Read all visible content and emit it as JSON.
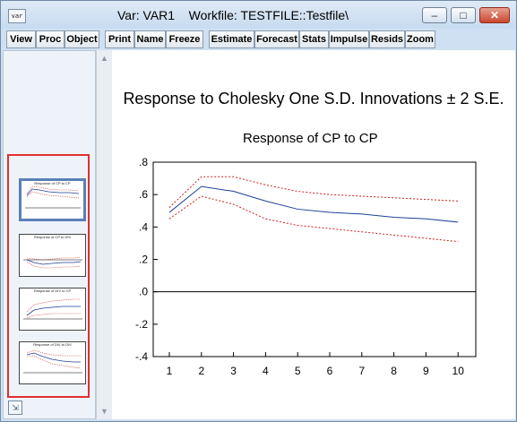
{
  "window": {
    "icon_label": "var",
    "title": "Var: VAR1    Workfile: TESTFILE::Testfile\\",
    "controls": {
      "minimize": "–",
      "maximize": "□",
      "close": "✕"
    }
  },
  "toolbar": {
    "buttons": [
      "View",
      "Proc",
      "Object",
      "Print",
      "Name",
      "Freeze",
      "Estimate",
      "Forecast",
      "Stats",
      "Impulse",
      "Resids",
      "Zoom"
    ]
  },
  "thumbnails": [
    {
      "title": "Response of CP to CP",
      "selected": true
    },
    {
      "title": "Response of CP to DIV",
      "selected": false
    },
    {
      "title": "Response of DIV to CP",
      "selected": false
    },
    {
      "title": "Response of DIV to DIV",
      "selected": false
    }
  ],
  "chart": {
    "main_title": "Response to Cholesky One S.D. Innovations ± 2 S.E.",
    "subtitle": "Response of CP to CP",
    "chart_data": {
      "type": "line",
      "x": [
        1,
        2,
        3,
        4,
        5,
        6,
        7,
        8,
        9,
        10
      ],
      "ylim": [
        -0.4,
        0.8
      ],
      "yticks": [
        ".8",
        ".6",
        ".4",
        ".2",
        ".0",
        "-.2",
        "-.4"
      ],
      "xticks": [
        "1",
        "2",
        "3",
        "4",
        "5",
        "6",
        "7",
        "8",
        "9",
        "10"
      ],
      "series": [
        {
          "values": [
            0.49,
            0.65,
            0.62,
            0.56,
            0.51,
            0.49,
            0.48,
            0.46,
            0.45,
            0.43
          ],
          "color": "#1f3f9a",
          "style": "solid"
        },
        {
          "values": [
            0.52,
            0.71,
            0.71,
            0.66,
            0.62,
            0.6,
            0.59,
            0.58,
            0.57,
            0.56
          ],
          "color": "#d02020",
          "style": "dotted"
        },
        {
          "values": [
            0.45,
            0.59,
            0.54,
            0.45,
            0.41,
            0.39,
            0.37,
            0.35,
            0.33,
            0.31
          ],
          "color": "#d02020",
          "style": "dotted"
        }
      ],
      "grid": false
    }
  }
}
